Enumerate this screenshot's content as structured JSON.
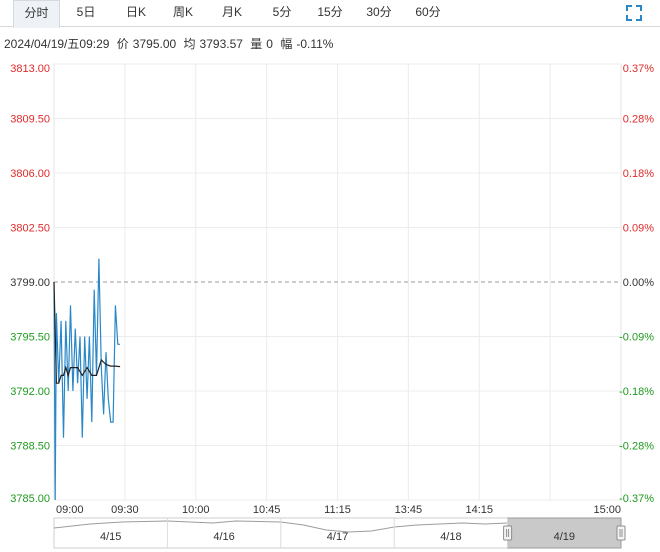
{
  "tabs": [
    {
      "label": "分时",
      "active": true
    },
    {
      "label": "5日",
      "active": false
    },
    {
      "label": "日K",
      "active": false
    },
    {
      "label": "周K",
      "active": false
    },
    {
      "label": "月K",
      "active": false
    },
    {
      "label": "5分",
      "active": false
    },
    {
      "label": "15分",
      "active": false
    },
    {
      "label": "30分",
      "active": false
    },
    {
      "label": "60分",
      "active": false
    }
  ],
  "fullscreen_icon": "expand-icon",
  "info": {
    "datetime": "2024/04/19/五09:29",
    "price_label": "价",
    "price": "3795.00",
    "avg_label": "均",
    "avg": "3793.57",
    "vol_label": "量",
    "vol": "0",
    "chg_label": "幅",
    "chg": "-0.11%"
  },
  "colors": {
    "up": "#e02b2b",
    "down": "#1f9a1f",
    "price_line": "#2a88c8",
    "avg_line": "#222222",
    "ref_line": "#999999",
    "grid": "#ececec",
    "navigator_fill": "#c9c9c9"
  },
  "chart_data": {
    "type": "line",
    "y_ticks": [
      {
        "price": "3813.00",
        "pct": "0.37%",
        "value": 3813.0,
        "dir": "up"
      },
      {
        "price": "3809.50",
        "pct": "0.28%",
        "value": 3809.5,
        "dir": "up"
      },
      {
        "price": "3806.00",
        "pct": "0.18%",
        "value": 3806.0,
        "dir": "up"
      },
      {
        "price": "3802.50",
        "pct": "0.09%",
        "value": 3802.5,
        "dir": "up"
      },
      {
        "price": "3799.00",
        "pct": "0.00%",
        "value": 3799.0,
        "dir": "ref"
      },
      {
        "price": "3795.50",
        "pct": "-0.09%",
        "value": 3795.5,
        "dir": "down"
      },
      {
        "price": "3792.00",
        "pct": "-0.18%",
        "value": 3792.0,
        "dir": "down"
      },
      {
        "price": "3788.50",
        "pct": "-0.28%",
        "value": 3788.5,
        "dir": "down"
      },
      {
        "price": "3785.00",
        "pct": "-0.37%",
        "value": 3785.0,
        "dir": "down"
      }
    ],
    "ylim": [
      3785.0,
      3813.0
    ],
    "reference_price": 3799.0,
    "x_ticks": [
      "09:00",
      "09:30",
      "10:00",
      "10:45",
      "11:15",
      "13:45",
      "14:15",
      "15:00"
    ],
    "session_slots": 8,
    "price_series": {
      "name": "",
      "minutes": [
        0,
        0.5,
        1,
        2,
        3,
        4,
        5,
        6,
        7,
        8,
        9,
        10,
        11,
        12,
        13,
        14,
        15,
        16,
        17,
        18,
        19,
        20,
        21,
        22,
        23,
        24,
        25,
        26,
        27,
        28
      ],
      "values": [
        3799.0,
        3785.0,
        3797.0,
        3792.5,
        3796.5,
        3789.0,
        3796.5,
        3792.0,
        3797.5,
        3792.0,
        3796.0,
        3792.5,
        3795.5,
        3789.0,
        3795.5,
        3791.5,
        3795.5,
        3790.0,
        3798.5,
        3793.0,
        3800.5,
        3793.5,
        3790.5,
        3794.5,
        3791.5,
        3790.0,
        3790.0,
        3797.5,
        3795.0,
        3795.0
      ]
    },
    "avg_series": {
      "name": "",
      "minutes": [
        0,
        1,
        2,
        3,
        4,
        5,
        6,
        7,
        8,
        10,
        12,
        14,
        16,
        18,
        20,
        22,
        24,
        26,
        28
      ],
      "values": [
        3799.0,
        3792.5,
        3792.5,
        3793.0,
        3793.0,
        3793.5,
        3793.0,
        3793.5,
        3793.5,
        3793.5,
        3793.0,
        3793.5,
        3793.0,
        3793.0,
        3794.0,
        3793.7,
        3793.6,
        3793.6,
        3793.57
      ]
    }
  },
  "navigator": {
    "days": [
      "4/15",
      "4/16",
      "4/17",
      "4/18",
      "4/19"
    ],
    "selected_day_index": 4
  }
}
